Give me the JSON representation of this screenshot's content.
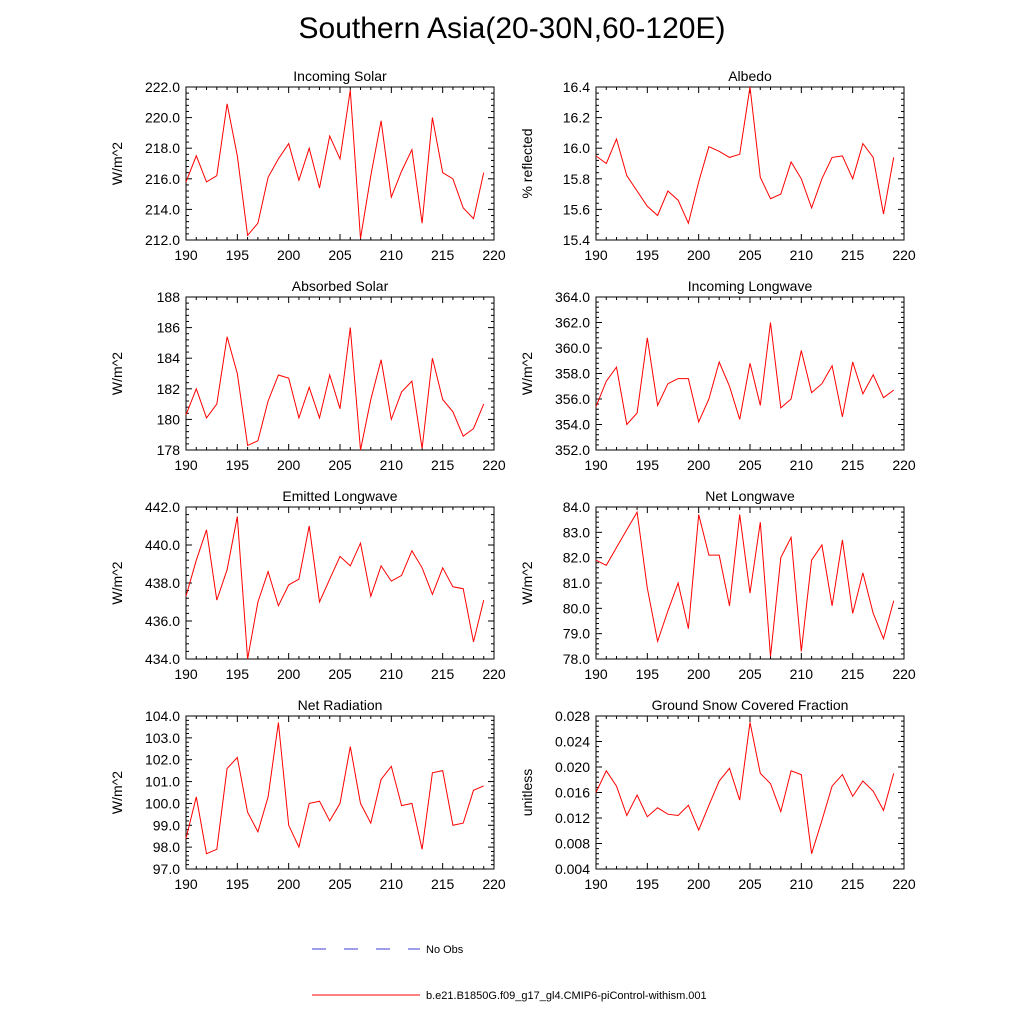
{
  "figure": {
    "title": "Southern Asia(20-30N,60-120E)"
  },
  "legend": {
    "entries": [
      {
        "label": "No Obs",
        "color": "#3d3dd6",
        "style": "dashed"
      },
      {
        "label": "b.e21.B1850G.f09_g17_gl4.CMIP6-piControl-withism.001",
        "color": "#ff0000",
        "style": "solid"
      }
    ]
  },
  "chart_data": [
    {
      "type": "line",
      "title": "Incoming Solar",
      "ylabel": "W/m^2",
      "xlabel": "",
      "xlim": [
        190,
        220
      ],
      "xticks": [
        190,
        195,
        200,
        205,
        210,
        215,
        220
      ],
      "ylim": [
        212,
        222
      ],
      "yticks": [
        "212.0",
        "214.0",
        "216.0",
        "218.0",
        "220.0",
        "222.0"
      ],
      "color": "#ff0000",
      "x": [
        190,
        191,
        192,
        193,
        194,
        195,
        196,
        197,
        198,
        199,
        200,
        201,
        202,
        203,
        204,
        205,
        206,
        207,
        208,
        209,
        210,
        211,
        212,
        213,
        214,
        215,
        216,
        217,
        218,
        219
      ],
      "series": [
        {
          "name": "b.e21.B1850G.f09_g17_gl4.CMIP6-piControl-withism.001",
          "values": [
            215.8,
            217.5,
            215.8,
            216.2,
            220.9,
            217.5,
            212.3,
            213.1,
            216.1,
            217.3,
            218.3,
            215.9,
            218.0,
            215.4,
            218.8,
            217.3,
            221.8,
            212.1,
            216.2,
            219.8,
            214.8,
            216.5,
            217.9,
            213.1,
            220.0,
            216.4,
            216.0,
            214.1,
            213.4,
            216.4
          ]
        }
      ]
    },
    {
      "type": "line",
      "title": "Albedo",
      "ylabel": "% reflected",
      "xlabel": "",
      "xlim": [
        190,
        220
      ],
      "xticks": [
        190,
        195,
        200,
        205,
        210,
        215,
        220
      ],
      "ylim": [
        15.4,
        16.4
      ],
      "yticks": [
        "15.4",
        "15.6",
        "15.8",
        "16.0",
        "16.2",
        "16.4"
      ],
      "color": "#ff0000",
      "x": [
        190,
        191,
        192,
        193,
        194,
        195,
        196,
        197,
        198,
        199,
        200,
        201,
        202,
        203,
        204,
        205,
        206,
        207,
        208,
        209,
        210,
        211,
        212,
        213,
        214,
        215,
        216,
        217,
        218,
        219
      ],
      "series": [
        {
          "name": "b.e21.B1850G.f09_g17_gl4.CMIP6-piControl-withism.001",
          "values": [
            15.95,
            15.9,
            16.06,
            15.82,
            15.72,
            15.62,
            15.56,
            15.72,
            15.66,
            15.51,
            15.78,
            16.01,
            15.98,
            15.94,
            15.96,
            16.4,
            15.81,
            15.67,
            15.7,
            15.91,
            15.8,
            15.61,
            15.8,
            15.94,
            15.95,
            15.8,
            16.03,
            15.94,
            15.57,
            15.94
          ]
        }
      ]
    },
    {
      "type": "line",
      "title": "Absorbed Solar",
      "ylabel": "W/m^2",
      "xlabel": "",
      "xlim": [
        190,
        220
      ],
      "xticks": [
        190,
        195,
        200,
        205,
        210,
        215,
        220
      ],
      "ylim": [
        178,
        188
      ],
      "yticks": [
        "178",
        "180",
        "182",
        "184",
        "186",
        "188"
      ],
      "color": "#ff0000",
      "x": [
        190,
        191,
        192,
        193,
        194,
        195,
        196,
        197,
        198,
        199,
        200,
        201,
        202,
        203,
        204,
        205,
        206,
        207,
        208,
        209,
        210,
        211,
        212,
        213,
        214,
        215,
        216,
        217,
        218,
        219
      ],
      "series": [
        {
          "name": "b.e21.B1850G.f09_g17_gl4.CMIP6-piControl-withism.001",
          "values": [
            180.3,
            182.0,
            180.1,
            181.0,
            185.4,
            183.0,
            178.3,
            178.6,
            181.2,
            182.9,
            182.7,
            180.1,
            182.1,
            180.1,
            182.9,
            180.7,
            186.0,
            178.0,
            181.3,
            183.9,
            180.0,
            181.8,
            182.5,
            178.1,
            184.0,
            181.3,
            180.5,
            178.9,
            179.4,
            181.0
          ]
        }
      ]
    },
    {
      "type": "line",
      "title": "Incoming Longwave",
      "ylabel": "W/m^2",
      "xlabel": "",
      "xlim": [
        190,
        220
      ],
      "xticks": [
        190,
        195,
        200,
        205,
        210,
        215,
        220
      ],
      "ylim": [
        352,
        364
      ],
      "yticks": [
        "352.0",
        "354.0",
        "356.0",
        "358.0",
        "360.0",
        "362.0",
        "364.0"
      ],
      "color": "#ff0000",
      "x": [
        190,
        191,
        192,
        193,
        194,
        195,
        196,
        197,
        198,
        199,
        200,
        201,
        202,
        203,
        204,
        205,
        206,
        207,
        208,
        209,
        210,
        211,
        212,
        213,
        214,
        215,
        216,
        217,
        218,
        219
      ],
      "series": [
        {
          "name": "b.e21.B1850G.f09_g17_gl4.CMIP6-piControl-withism.001",
          "values": [
            355.4,
            357.4,
            358.5,
            354.0,
            354.9,
            360.8,
            355.5,
            357.2,
            357.6,
            357.6,
            354.2,
            356.0,
            358.9,
            357.0,
            354.4,
            358.8,
            355.5,
            362.0,
            355.3,
            356.0,
            359.8,
            356.5,
            357.2,
            358.6,
            354.6,
            358.9,
            356.4,
            357.9,
            356.1,
            356.7
          ]
        }
      ]
    },
    {
      "type": "line",
      "title": "Emitted Longwave",
      "ylabel": "W/m^2",
      "xlabel": "",
      "xlim": [
        190,
        220
      ],
      "xticks": [
        190,
        195,
        200,
        205,
        210,
        215,
        220
      ],
      "ylim": [
        434,
        442
      ],
      "yticks": [
        "434.0",
        "436.0",
        "438.0",
        "440.0",
        "442.0"
      ],
      "color": "#ff0000",
      "x": [
        190,
        191,
        192,
        193,
        194,
        195,
        196,
        197,
        198,
        199,
        200,
        201,
        202,
        203,
        204,
        205,
        206,
        207,
        208,
        209,
        210,
        211,
        212,
        213,
        214,
        215,
        216,
        217,
        218,
        219
      ],
      "series": [
        {
          "name": "b.e21.B1850G.f09_g17_gl4.CMIP6-piControl-withism.001",
          "values": [
            437.3,
            439.2,
            440.8,
            437.1,
            438.7,
            441.5,
            434.0,
            437.0,
            438.6,
            436.8,
            437.9,
            438.2,
            441.0,
            437.0,
            438.2,
            439.4,
            438.9,
            440.1,
            437.3,
            438.9,
            438.1,
            438.4,
            439.7,
            438.8,
            437.4,
            438.8,
            437.8,
            437.7,
            434.9,
            437.1
          ]
        }
      ]
    },
    {
      "type": "line",
      "title": "Net Longwave",
      "ylabel": "W/m^2",
      "xlabel": "",
      "xlim": [
        190,
        220
      ],
      "xticks": [
        190,
        195,
        200,
        205,
        210,
        215,
        220
      ],
      "ylim": [
        78,
        84
      ],
      "yticks": [
        "78.0",
        "79.0",
        "80.0",
        "81.0",
        "82.0",
        "83.0",
        "84.0"
      ],
      "color": "#ff0000",
      "x": [
        190,
        191,
        192,
        193,
        194,
        195,
        196,
        197,
        198,
        199,
        200,
        201,
        202,
        203,
        204,
        205,
        206,
        207,
        208,
        209,
        210,
        211,
        212,
        213,
        214,
        215,
        216,
        217,
        218,
        219
      ],
      "series": [
        {
          "name": "b.e21.B1850G.f09_g17_gl4.CMIP6-piControl-withism.001",
          "values": [
            81.9,
            81.7,
            82.4,
            83.1,
            83.8,
            80.8,
            78.7,
            79.9,
            81.0,
            79.2,
            83.7,
            82.1,
            82.1,
            80.1,
            83.7,
            80.6,
            83.4,
            78.1,
            82.0,
            82.8,
            78.3,
            81.9,
            82.5,
            80.1,
            82.7,
            79.8,
            81.4,
            79.8,
            78.8,
            80.3
          ]
        }
      ]
    },
    {
      "type": "line",
      "title": "Net Radiation",
      "ylabel": "W/m^2",
      "xlabel": "",
      "xlim": [
        190,
        220
      ],
      "xticks": [
        190,
        195,
        200,
        205,
        210,
        215,
        220
      ],
      "ylim": [
        97,
        104
      ],
      "yticks": [
        "97.0",
        "98.0",
        "99.0",
        "100.0",
        "101.0",
        "102.0",
        "103.0",
        "104.0"
      ],
      "color": "#ff0000",
      "x": [
        190,
        191,
        192,
        193,
        194,
        195,
        196,
        197,
        198,
        199,
        200,
        201,
        202,
        203,
        204,
        205,
        206,
        207,
        208,
        209,
        210,
        211,
        212,
        213,
        214,
        215,
        216,
        217,
        218,
        219
      ],
      "series": [
        {
          "name": "b.e21.B1850G.f09_g17_gl4.CMIP6-piControl-withism.001",
          "values": [
            98.4,
            100.3,
            97.7,
            97.9,
            101.6,
            102.1,
            99.6,
            98.7,
            100.3,
            103.7,
            99.0,
            98.0,
            100.0,
            100.1,
            99.2,
            100.0,
            102.6,
            100.0,
            99.1,
            101.1,
            101.7,
            99.9,
            100.0,
            97.9,
            101.4,
            101.5,
            99.0,
            99.1,
            100.6,
            100.8
          ]
        }
      ]
    },
    {
      "type": "line",
      "title": "Ground Snow Covered Fraction",
      "ylabel": "unitless",
      "xlabel": "",
      "xlim": [
        190,
        220
      ],
      "xticks": [
        190,
        195,
        200,
        205,
        210,
        215,
        220
      ],
      "ylim": [
        0.004,
        0.028
      ],
      "yticks": [
        "0.004",
        "0.008",
        "0.012",
        "0.016",
        "0.020",
        "0.024",
        "0.028"
      ],
      "color": "#ff0000",
      "x": [
        190,
        191,
        192,
        193,
        194,
        195,
        196,
        197,
        198,
        199,
        200,
        201,
        202,
        203,
        204,
        205,
        206,
        207,
        208,
        209,
        210,
        211,
        212,
        213,
        214,
        215,
        216,
        217,
        218,
        219
      ],
      "series": [
        {
          "name": "b.e21.B1850G.f09_g17_gl4.CMIP6-piControl-withism.001",
          "values": [
            0.016,
            0.0194,
            0.017,
            0.0124,
            0.0156,
            0.0122,
            0.0136,
            0.0126,
            0.0124,
            0.014,
            0.0101,
            0.014,
            0.0178,
            0.0198,
            0.0148,
            0.027,
            0.019,
            0.0174,
            0.013,
            0.0194,
            0.0188,
            0.0064,
            0.0116,
            0.017,
            0.0188,
            0.0154,
            0.0178,
            0.0162,
            0.0132,
            0.019
          ]
        }
      ]
    }
  ]
}
